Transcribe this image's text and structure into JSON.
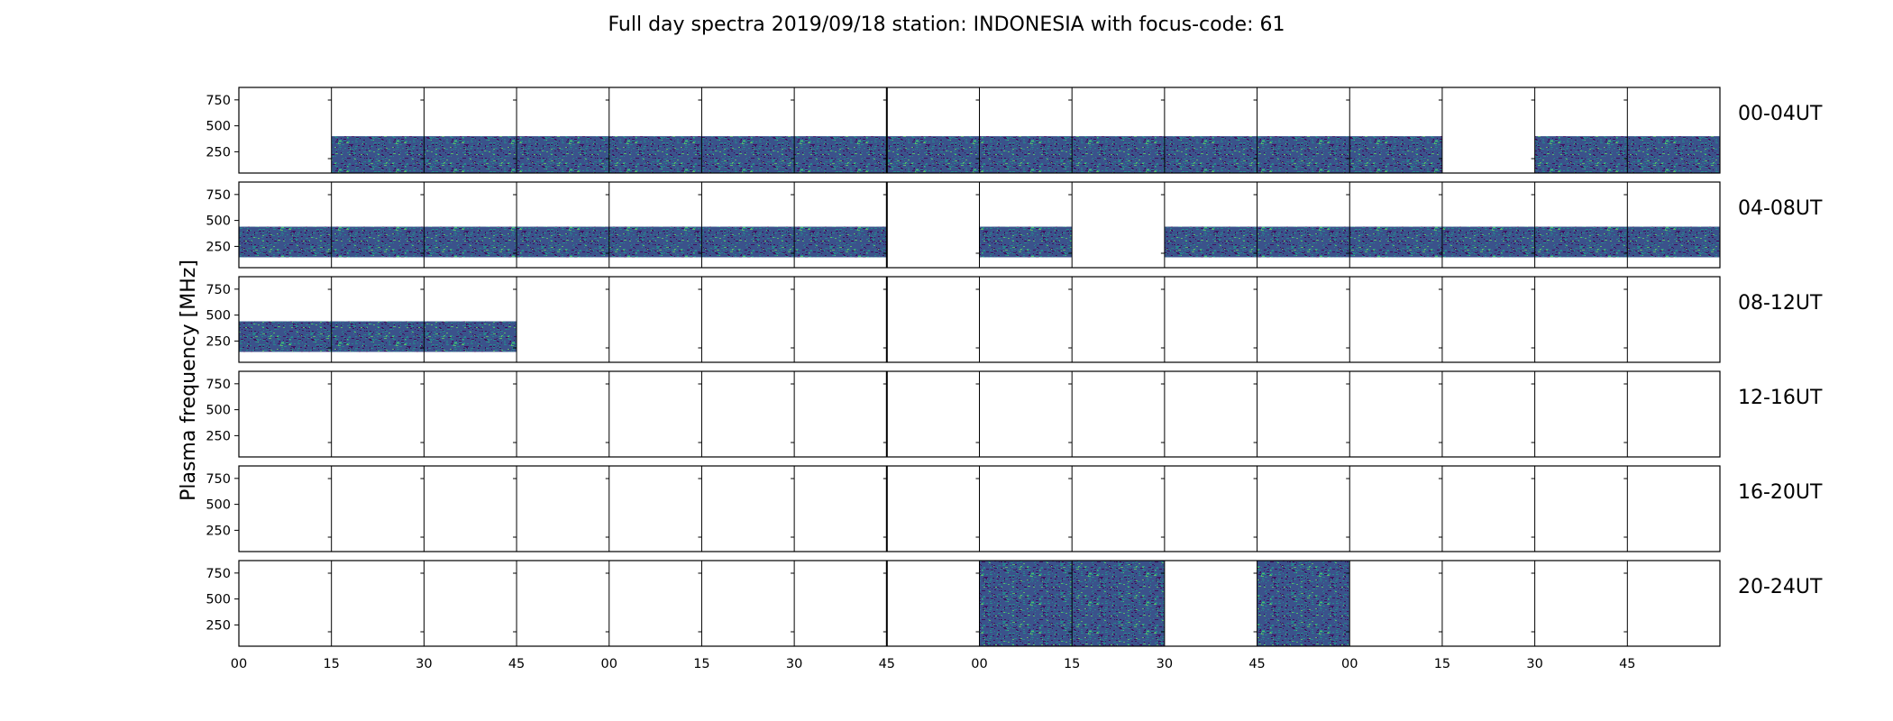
{
  "chart_data": {
    "type": "heatmap",
    "title": "Full day spectra 2019/09/18 station: INDONESIA with focus-code: 61",
    "ylabel": "Plasma frequency [MHz]",
    "xlabel": "",
    "ylim": [
      45,
      870
    ],
    "y_ticks": [
      "250",
      "500",
      "750"
    ],
    "x_ticks": [
      "00",
      "15",
      "30",
      "45",
      "00",
      "15",
      "30",
      "45",
      "00",
      "15",
      "30",
      "45",
      "00",
      "15",
      "30",
      "45"
    ],
    "colormap": [
      "#440154",
      "#3b528b",
      "#21918c",
      "#5ec962"
    ],
    "rows": [
      {
        "label": "00-04UT",
        "segments": [
          {
            "start": 1,
            "end": 13,
            "fmin": 45,
            "fmax": 400
          },
          {
            "start": 14,
            "end": 16,
            "fmin": 45,
            "fmax": 400
          }
        ]
      },
      {
        "label": "04-08UT",
        "segments": [
          {
            "start": 0,
            "end": 7,
            "fmin": 145,
            "fmax": 440
          },
          {
            "start": 8,
            "end": 9,
            "fmin": 145,
            "fmax": 440
          },
          {
            "start": 10,
            "end": 16,
            "fmin": 145,
            "fmax": 440
          }
        ]
      },
      {
        "label": "08-12UT",
        "segments": [
          {
            "start": 0,
            "end": 3,
            "fmin": 145,
            "fmax": 440
          }
        ]
      },
      {
        "label": "12-16UT",
        "segments": []
      },
      {
        "label": "16-20UT",
        "segments": []
      },
      {
        "label": "20-24UT",
        "segments": [
          {
            "start": 8,
            "end": 10,
            "fmin": 45,
            "fmax": 870
          },
          {
            "start": 11,
            "end": 12,
            "fmin": 45,
            "fmax": 870
          }
        ]
      }
    ]
  }
}
